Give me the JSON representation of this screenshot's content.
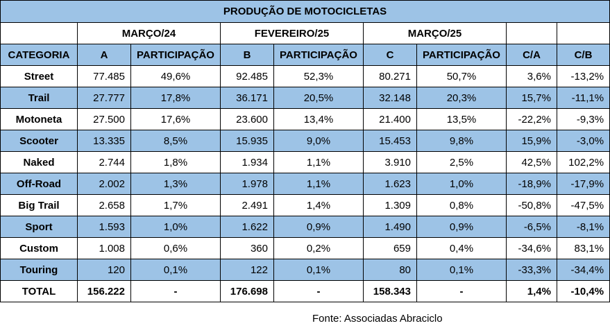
{
  "title": "PRODUÇÃO DE MOTOCICLETAS",
  "periods": [
    "MARÇO/24",
    "FEVEREIRO/25",
    "MARÇO/25"
  ],
  "headers": [
    "CATEGORIA",
    "A",
    "PARTICIPAÇÃO",
    "B",
    "PARTICIPAÇÃO",
    "C",
    "PARTICIPAÇÃO",
    "C/A",
    "C/B"
  ],
  "rows": [
    [
      "Street",
      "77.485",
      "49,6%",
      "92.485",
      "52,3%",
      "80.271",
      "50,7%",
      "3,6%",
      "-13,2%"
    ],
    [
      "Trail",
      "27.777",
      "17,8%",
      "36.171",
      "20,5%",
      "32.148",
      "20,3%",
      "15,7%",
      "-11,1%"
    ],
    [
      "Motoneta",
      "27.500",
      "17,6%",
      "23.600",
      "13,4%",
      "21.400",
      "13,5%",
      "-22,2%",
      "-9,3%"
    ],
    [
      "Scooter",
      "13.335",
      "8,5%",
      "15.935",
      "9,0%",
      "15.453",
      "9,8%",
      "15,9%",
      "-3,0%"
    ],
    [
      "Naked",
      "2.744",
      "1,8%",
      "1.934",
      "1,1%",
      "3.910",
      "2,5%",
      "42,5%",
      "102,2%"
    ],
    [
      "Off-Road",
      "2.002",
      "1,3%",
      "1.978",
      "1,1%",
      "1.623",
      "1,0%",
      "-18,9%",
      "-17,9%"
    ],
    [
      "Big Trail",
      "2.658",
      "1,7%",
      "2.491",
      "1,4%",
      "1.309",
      "0,8%",
      "-50,8%",
      "-47,5%"
    ],
    [
      "Sport",
      "1.593",
      "1,0%",
      "1.622",
      "0,9%",
      "1.490",
      "0,9%",
      "-6,5%",
      "-8,1%"
    ],
    [
      "Custom",
      "1.008",
      "0,6%",
      "360",
      "0,2%",
      "659",
      "0,4%",
      "-34,6%",
      "83,1%"
    ],
    [
      "Touring",
      "120",
      "0,1%",
      "122",
      "0,1%",
      "80",
      "0,1%",
      "-33,3%",
      "-34,4%"
    ]
  ],
  "total": [
    "TOTAL",
    "156.222",
    "-",
    "176.698",
    "-",
    "158.343",
    "-",
    "1,4%",
    "-10,4%"
  ],
  "source": "Fonte: Associadas Abraciclo",
  "colors": {
    "header_band": "#9dc3e6",
    "border": "#000000"
  }
}
